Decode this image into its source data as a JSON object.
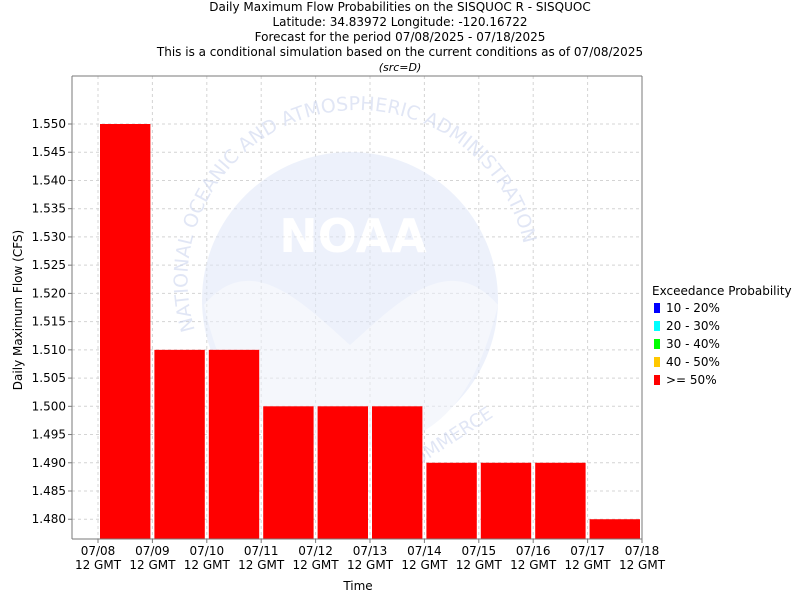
{
  "titles": {
    "line1": "Daily Maximum Flow Probabilities on the SISQUOC R - SISQUOC",
    "line2": "Latitude: 34.83972 Longitude: -120.16722",
    "line3": "Forecast for the period 07/08/2025 - 07/18/2025",
    "line4": "This is a conditional simulation based on the current conditions as of 07/08/2025",
    "line5": "(src=D)"
  },
  "watermark": {
    "logo_text": "NOAA",
    "arc_text": "NATIONAL OCEANIC AND ATMOSPHERIC ADMINISTRATION",
    "bottom_text": "COMMERCE"
  },
  "legend": {
    "title": "Exceedance Probability",
    "items": [
      {
        "label": "10 - 20%",
        "color": "#0000ff"
      },
      {
        "label": "20 - 30%",
        "color": "#00ffff"
      },
      {
        "label": "30 - 40%",
        "color": "#00ff00"
      },
      {
        "label": "40 - 50%",
        "color": "#ffc800"
      },
      {
        "label": ">= 50%",
        "color": "#ff0000"
      }
    ]
  },
  "chart_data": {
    "type": "bar",
    "xlabel": "Time",
    "ylabel": "Daily Maximum Flow (CFS)",
    "ylim": [
      1.4765,
      1.5585
    ],
    "yticks": [
      1.48,
      1.485,
      1.49,
      1.495,
      1.5,
      1.505,
      1.51,
      1.515,
      1.52,
      1.525,
      1.53,
      1.535,
      1.54,
      1.545,
      1.55
    ],
    "ytick_labels": [
      "1.480",
      "1.485",
      "1.490",
      "1.495",
      "1.500",
      "1.505",
      "1.510",
      "1.515",
      "1.520",
      "1.525",
      "1.530",
      "1.535",
      "1.540",
      "1.545",
      "1.550"
    ],
    "x_ticks": [
      {
        "date": "07/08",
        "time": "12 GMT"
      },
      {
        "date": "07/09",
        "time": "12 GMT"
      },
      {
        "date": "07/10",
        "time": "12 GMT"
      },
      {
        "date": "07/11",
        "time": "12 GMT"
      },
      {
        "date": "07/12",
        "time": "12 GMT"
      },
      {
        "date": "07/13",
        "time": "12 GMT"
      },
      {
        "date": "07/14",
        "time": "12 GMT"
      },
      {
        "date": "07/15",
        "time": "12 GMT"
      },
      {
        "date": "07/16",
        "time": "12 GMT"
      },
      {
        "date": "07/17",
        "time": "12 GMT"
      },
      {
        "date": "07/18",
        "time": "12 GMT"
      }
    ],
    "series": [
      {
        "name": ">= 50%",
        "color": "#ff0000",
        "values": [
          1.55,
          1.51,
          1.51,
          1.5,
          1.5,
          1.5,
          1.49,
          1.49,
          1.49,
          1.48
        ]
      }
    ],
    "grid": true,
    "legend_position": "right"
  }
}
